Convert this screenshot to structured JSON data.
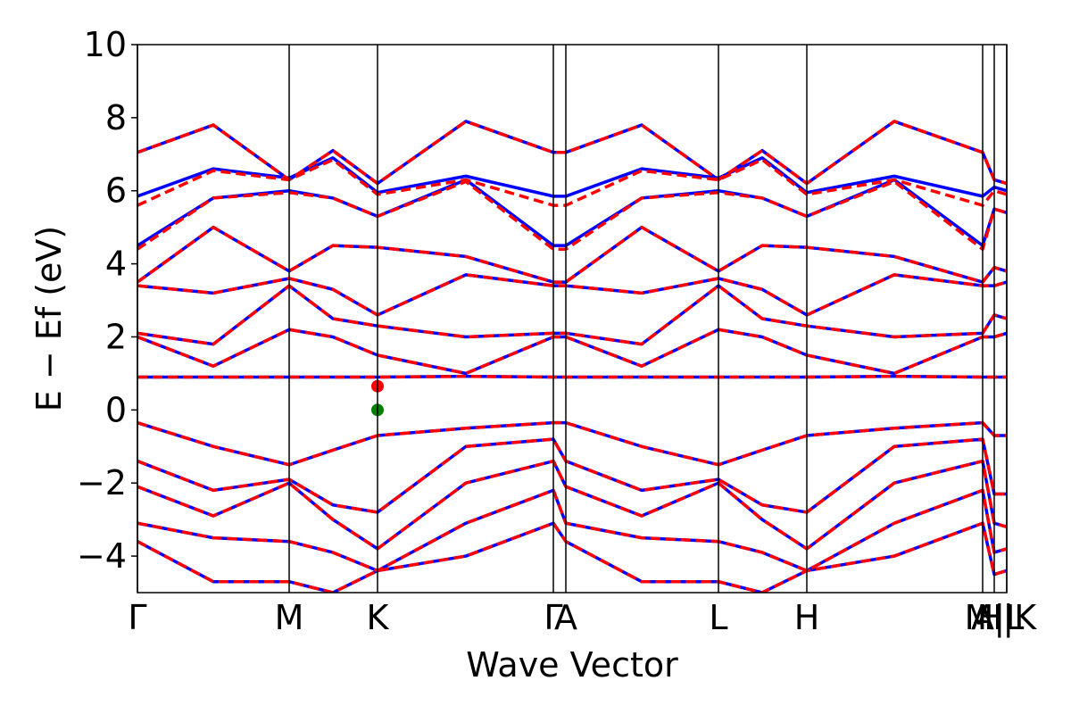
{
  "chart_data": {
    "type": "line",
    "xlabel": "Wave Vector",
    "ylabel": "E − Ef (eV)",
    "x": [
      0,
      0.85,
      1.7,
      2.19,
      2.69,
      3.68,
      4.66,
      4.8,
      5.65,
      6.51,
      7.0,
      7.5,
      8.48,
      9.47,
      9.6,
      9.74
    ],
    "xlim": [
      0,
      9.74
    ],
    "xticks": [
      {
        "value": 0,
        "label": "Γ"
      },
      {
        "value": 1.7,
        "label": "M"
      },
      {
        "value": 2.69,
        "label": "K"
      },
      {
        "value": 4.66,
        "label": "Γ"
      },
      {
        "value": 4.8,
        "label": "A"
      },
      {
        "value": 6.51,
        "label": "L"
      },
      {
        "value": 7.5,
        "label": "H"
      },
      {
        "value": 9.47,
        "label": "A"
      },
      {
        "value": 9.6,
        "label": "M|L"
      },
      {
        "value": 9.74,
        "label": "H|K"
      }
    ],
    "ylim": [
      -5,
      10
    ],
    "yticks": [
      {
        "value": -4,
        "label": "−4"
      },
      {
        "value": -2,
        "label": "−2"
      },
      0,
      2,
      4,
      6,
      8,
      10
    ],
    "series": [
      {
        "color": "#0000ff",
        "style": "solid",
        "values": [
          7.05,
          7.8,
          6.3,
          7.1,
          6.2,
          7.9,
          7.05,
          7.05,
          7.8,
          6.3,
          7.1,
          6.2,
          7.9,
          7.05,
          6.3,
          6.2
        ]
      },
      {
        "color": "#0000ff",
        "style": "solid",
        "values": [
          5.85,
          6.6,
          6.35,
          6.9,
          5.95,
          6.4,
          5.85,
          5.85,
          6.6,
          6.35,
          6.9,
          5.95,
          6.4,
          5.85,
          6.1,
          6.0
        ]
      },
      {
        "color": "#0000ff",
        "style": "solid",
        "values": [
          4.5,
          5.8,
          6.0,
          5.8,
          5.3,
          6.3,
          4.5,
          4.5,
          5.8,
          6.0,
          5.8,
          5.3,
          6.3,
          4.5,
          5.5,
          5.4
        ]
      },
      {
        "color": "#0000ff",
        "style": "solid",
        "values": [
          3.5,
          5.0,
          3.8,
          4.5,
          4.45,
          4.2,
          3.5,
          3.5,
          5.0,
          3.8,
          4.5,
          4.45,
          4.2,
          3.5,
          3.9,
          3.8
        ]
      },
      {
        "color": "#0000ff",
        "style": "solid",
        "values": [
          3.4,
          3.2,
          3.6,
          3.3,
          2.6,
          3.7,
          3.4,
          3.4,
          3.2,
          3.6,
          3.3,
          2.6,
          3.7,
          3.4,
          3.4,
          3.5
        ]
      },
      {
        "color": "#0000ff",
        "style": "solid",
        "values": [
          2.1,
          1.8,
          3.4,
          2.5,
          2.3,
          2.0,
          2.1,
          2.1,
          1.8,
          3.4,
          2.5,
          2.3,
          2.0,
          2.1,
          2.6,
          2.5
        ]
      },
      {
        "color": "#0000ff",
        "style": "solid",
        "values": [
          2.0,
          1.2,
          2.2,
          2.0,
          1.5,
          1.0,
          2.0,
          2.0,
          1.2,
          2.2,
          2.0,
          1.5,
          1.0,
          2.0,
          2.0,
          2.1
        ]
      },
      {
        "color": "#0000ff",
        "style": "solid",
        "values": [
          0.9,
          0.9,
          0.9,
          0.9,
          0.9,
          0.92,
          0.9,
          0.9,
          0.9,
          0.9,
          0.9,
          0.9,
          0.92,
          0.9,
          0.9,
          0.9
        ]
      },
      {
        "color": "#0000ff",
        "style": "solid",
        "values": [
          -0.35,
          -1.0,
          -1.5,
          -1.1,
          -0.7,
          -0.5,
          -0.35,
          -0.35,
          -1.0,
          -1.5,
          -1.1,
          -0.7,
          -0.5,
          -0.35,
          -0.7,
          -0.7
        ]
      },
      {
        "color": "#0000ff",
        "style": "solid",
        "values": [
          -1.4,
          -2.2,
          -1.9,
          -2.6,
          -2.8,
          -1.0,
          -0.8,
          -1.4,
          -2.2,
          -1.9,
          -2.6,
          -2.8,
          -1.0,
          -0.8,
          -2.3,
          -2.3
        ]
      },
      {
        "color": "#0000ff",
        "style": "solid",
        "values": [
          -2.1,
          -2.9,
          -2.0,
          -3.0,
          -3.8,
          -2.0,
          -1.4,
          -2.1,
          -2.9,
          -2.0,
          -3.0,
          -3.8,
          -2.0,
          -1.4,
          -3.1,
          -3.2
        ]
      },
      {
        "color": "#0000ff",
        "style": "solid",
        "values": [
          -3.1,
          -3.5,
          -3.6,
          -3.9,
          -4.4,
          -3.1,
          -2.2,
          -3.1,
          -3.5,
          -3.6,
          -3.9,
          -4.4,
          -3.1,
          -2.2,
          -3.9,
          -3.8
        ]
      },
      {
        "color": "#0000ff",
        "style": "solid",
        "values": [
          -3.6,
          -4.7,
          -4.7,
          -5.0,
          -4.4,
          -4.0,
          -3.1,
          -3.6,
          -4.7,
          -4.7,
          -5.0,
          -4.4,
          -4.0,
          -3.1,
          -4.5,
          -4.4
        ]
      },
      {
        "color": "#ff0000",
        "style": "dashed",
        "values": [
          7.05,
          7.8,
          6.3,
          7.1,
          6.2,
          7.9,
          7.05,
          7.05,
          7.8,
          6.3,
          7.1,
          6.2,
          7.9,
          7.05,
          6.3,
          6.2
        ]
      },
      {
        "color": "#ff0000",
        "style": "dashed",
        "values": [
          5.6,
          6.55,
          6.3,
          6.85,
          5.9,
          6.3,
          5.6,
          5.6,
          6.55,
          6.3,
          6.85,
          5.9,
          6.3,
          5.6,
          6.0,
          5.9
        ]
      },
      {
        "color": "#ff0000",
        "style": "dashed",
        "values": [
          4.4,
          5.8,
          5.95,
          5.8,
          5.3,
          6.25,
          4.4,
          4.4,
          5.8,
          5.95,
          5.8,
          5.3,
          6.25,
          4.4,
          5.5,
          5.4
        ]
      },
      {
        "color": "#ff0000",
        "style": "dashed",
        "values": [
          3.5,
          5.0,
          3.8,
          4.5,
          4.45,
          4.2,
          3.5,
          3.5,
          5.0,
          3.8,
          4.5,
          4.45,
          4.2,
          3.5,
          3.9,
          3.8
        ]
      },
      {
        "color": "#ff0000",
        "style": "dashed",
        "values": [
          3.4,
          3.2,
          3.6,
          3.3,
          2.6,
          3.7,
          3.4,
          3.4,
          3.2,
          3.6,
          3.3,
          2.6,
          3.7,
          3.4,
          3.4,
          3.5
        ]
      },
      {
        "color": "#ff0000",
        "style": "dashed",
        "values": [
          2.1,
          1.8,
          3.4,
          2.5,
          2.3,
          2.0,
          2.1,
          2.1,
          1.8,
          3.4,
          2.5,
          2.3,
          2.0,
          2.1,
          2.6,
          2.5
        ]
      },
      {
        "color": "#ff0000",
        "style": "dashed",
        "values": [
          2.0,
          1.2,
          2.2,
          2.0,
          1.5,
          1.0,
          2.0,
          2.0,
          1.2,
          2.2,
          2.0,
          1.5,
          1.0,
          2.0,
          2.0,
          2.1
        ]
      },
      {
        "color": "#ff0000",
        "style": "dashed",
        "values": [
          0.9,
          0.9,
          0.9,
          0.9,
          0.9,
          0.92,
          0.9,
          0.9,
          0.9,
          0.9,
          0.9,
          0.9,
          0.92,
          0.9,
          0.9,
          0.9
        ]
      },
      {
        "color": "#ff0000",
        "style": "dashed",
        "values": [
          -0.35,
          -1.0,
          -1.5,
          -1.1,
          -0.7,
          -0.5,
          -0.35,
          -0.35,
          -1.0,
          -1.5,
          -1.1,
          -0.7,
          -0.5,
          -0.35,
          -0.7,
          -0.7
        ]
      },
      {
        "color": "#ff0000",
        "style": "dashed",
        "values": [
          -1.4,
          -2.2,
          -1.9,
          -2.6,
          -2.8,
          -1.0,
          -0.8,
          -1.4,
          -2.2,
          -1.9,
          -2.6,
          -2.8,
          -1.0,
          -0.8,
          -2.3,
          -2.3
        ]
      },
      {
        "color": "#ff0000",
        "style": "dashed",
        "values": [
          -2.1,
          -2.9,
          -2.0,
          -3.0,
          -3.8,
          -2.0,
          -1.4,
          -2.1,
          -2.9,
          -2.0,
          -3.0,
          -3.8,
          -2.0,
          -1.4,
          -3.1,
          -3.2
        ]
      },
      {
        "color": "#ff0000",
        "style": "dashed",
        "values": [
          -3.1,
          -3.5,
          -3.6,
          -3.9,
          -4.4,
          -3.1,
          -2.2,
          -3.1,
          -3.5,
          -3.6,
          -3.9,
          -4.4,
          -3.1,
          -2.2,
          -3.9,
          -3.8
        ]
      },
      {
        "color": "#ff0000",
        "style": "dashed",
        "values": [
          -3.6,
          -4.7,
          -4.7,
          -5.0,
          -4.4,
          -4.0,
          -3.1,
          -3.6,
          -4.7,
          -4.7,
          -5.0,
          -4.4,
          -4.0,
          -3.1,
          -4.5,
          -4.4
        ]
      }
    ],
    "markers": [
      {
        "x": 2.69,
        "y": 0.65,
        "color": "#ff0000"
      },
      {
        "x": 2.69,
        "y": 0,
        "color": "#008000"
      }
    ]
  }
}
